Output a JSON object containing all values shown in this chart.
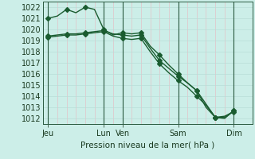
{
  "background_color": "#cceee8",
  "grid_color_h": "#b8ddd8",
  "grid_color_v": "#e8b8c0",
  "line_color": "#1a5c30",
  "title": "Pression niveau de la mer( hPa )",
  "ylim": [
    1011.5,
    1022.5
  ],
  "yticks": [
    1012,
    1013,
    1014,
    1015,
    1016,
    1017,
    1018,
    1019,
    1020,
    1021,
    1022
  ],
  "xtick_labels": [
    "Jeu",
    "Lun",
    "Ven",
    "Sam",
    "Dim"
  ],
  "xtick_positions": [
    0,
    60,
    80,
    140,
    200
  ],
  "vline_positions": [
    0,
    60,
    80,
    140,
    200
  ],
  "xlim": [
    -5,
    220
  ],
  "series1": {
    "x": [
      0,
      10,
      20,
      30,
      40,
      50,
      60,
      70,
      80,
      90,
      100,
      110,
      120,
      130,
      140,
      150,
      160,
      170,
      180,
      190,
      200
    ],
    "y": [
      1021.0,
      1021.2,
      1021.8,
      1021.5,
      1022.0,
      1021.8,
      1020.0,
      1019.5,
      1019.7,
      1019.6,
      1019.7,
      1018.5,
      1017.7,
      1016.8,
      1016.0,
      1015.2,
      1014.5,
      1013.0,
      1012.1,
      1012.0,
      1012.7
    ],
    "marker_x": [
      0,
      20,
      40,
      60,
      80,
      100,
      120,
      140,
      160,
      180,
      200
    ],
    "marker_y": [
      1021.0,
      1021.8,
      1022.0,
      1020.0,
      1019.7,
      1019.7,
      1017.7,
      1016.0,
      1014.5,
      1012.1,
      1012.7
    ]
  },
  "series2": {
    "x": [
      0,
      10,
      20,
      30,
      40,
      50,
      60,
      70,
      80,
      90,
      100,
      110,
      120,
      130,
      140,
      150,
      160,
      170,
      180,
      190,
      200
    ],
    "y": [
      1019.4,
      1019.5,
      1019.6,
      1019.6,
      1019.7,
      1019.8,
      1019.9,
      1019.6,
      1019.5,
      1019.4,
      1019.5,
      1018.3,
      1017.2,
      1016.5,
      1015.8,
      1015.2,
      1014.5,
      1013.3,
      1012.1,
      1012.1,
      1012.7
    ],
    "marker_x": [
      0,
      20,
      40,
      60,
      80,
      100,
      120,
      140,
      160,
      180,
      200
    ],
    "marker_y": [
      1019.4,
      1019.6,
      1019.7,
      1019.9,
      1019.5,
      1019.5,
      1017.2,
      1015.8,
      1014.5,
      1012.1,
      1012.7
    ]
  },
  "series3": {
    "x": [
      0,
      10,
      20,
      30,
      40,
      50,
      60,
      70,
      80,
      90,
      100,
      110,
      120,
      130,
      140,
      150,
      160,
      170,
      180,
      190,
      200
    ],
    "y": [
      1019.3,
      1019.4,
      1019.5,
      1019.5,
      1019.6,
      1019.7,
      1019.8,
      1019.4,
      1019.2,
      1019.1,
      1019.2,
      1018.0,
      1016.9,
      1016.1,
      1015.4,
      1014.8,
      1014.0,
      1013.2,
      1012.1,
      1012.2,
      1012.6
    ],
    "marker_x": [
      0,
      20,
      40,
      60,
      80,
      100,
      120,
      140,
      160,
      180,
      200
    ],
    "marker_y": [
      1019.3,
      1019.5,
      1019.6,
      1019.8,
      1019.2,
      1019.2,
      1016.9,
      1015.4,
      1014.0,
      1012.1,
      1012.6
    ]
  },
  "marker": "D",
  "markersize": 3.0,
  "linewidth": 1.0
}
